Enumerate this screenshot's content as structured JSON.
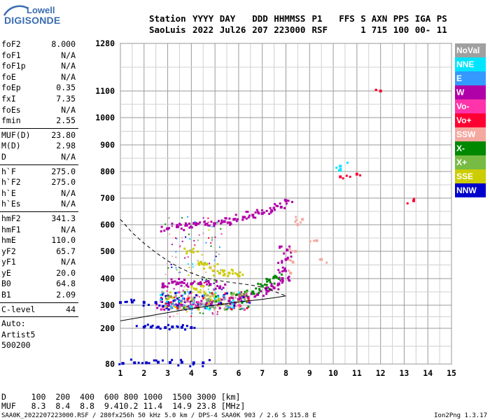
{
  "logo": {
    "line1": "Lowell",
    "line2": "DIGISONDE"
  },
  "header": {
    "row1": [
      "Station",
      "YYYY",
      "DAY",
      "DDD",
      "HHMMSS",
      "P1",
      "FFS",
      "S",
      "AXN",
      "PPS",
      "IGA",
      "PS"
    ],
    "row2": [
      "SaoLuis",
      "2022",
      "Jul26",
      "207",
      "223000",
      "RSF",
      "",
      "1",
      "715",
      "100",
      "00-",
      "11"
    ]
  },
  "params": {
    "group1": [
      {
        "name": "foF2",
        "value": "8.000"
      },
      {
        "name": "foF1",
        "value": "N/A"
      },
      {
        "name": "foF1p",
        "value": "N/A"
      },
      {
        "name": "foE",
        "value": "N/A"
      },
      {
        "name": "foEp",
        "value": "0.35"
      },
      {
        "name": "fxI",
        "value": "7.35"
      },
      {
        "name": "foEs",
        "value": "N/A"
      },
      {
        "name": "fmin",
        "value": "2.55"
      }
    ],
    "group2": [
      {
        "name": "MUF(D)",
        "value": "23.80"
      },
      {
        "name": "M(D)",
        "value": "2.98"
      },
      {
        "name": "D",
        "value": "N/A"
      }
    ],
    "group3": [
      {
        "name": "h`F",
        "value": "275.0"
      },
      {
        "name": "h`F2",
        "value": "275.0"
      },
      {
        "name": "h`E",
        "value": "N/A"
      },
      {
        "name": "h`Es",
        "value": "N/A"
      }
    ],
    "group4": [
      {
        "name": "hmF2",
        "value": "341.3"
      },
      {
        "name": "hmF1",
        "value": "N/A"
      },
      {
        "name": "hmE",
        "value": "110.0"
      },
      {
        "name": "yF2",
        "value": "65.7"
      },
      {
        "name": "yF1",
        "value": "N/A"
      },
      {
        "name": "yE",
        "value": "20.0"
      },
      {
        "name": "B0",
        "value": "64.8"
      },
      {
        "name": "B1",
        "value": "2.09"
      }
    ],
    "group5": [
      {
        "name": "C-level",
        "value": "44"
      }
    ],
    "auto_label": "Auto:",
    "artist": "Artist5",
    "artist_version": "500200"
  },
  "legend": [
    {
      "label": "NoVal",
      "color": "#a0a0a0"
    },
    {
      "label": "NNE",
      "color": "#00e5ff"
    },
    {
      "label": "E",
      "color": "#3399ff"
    },
    {
      "label": "W",
      "color": "#b000a8"
    },
    {
      "label": "Vo-",
      "color": "#ff33aa"
    },
    {
      "label": "Vo+",
      "color": "#ff0033"
    },
    {
      "label": "SSW",
      "color": "#f4a8a0"
    },
    {
      "label": "X-",
      "color": "#008800"
    },
    {
      "label": "X+",
      "color": "#77bb44"
    },
    {
      "label": "SSE",
      "color": "#cccc00"
    },
    {
      "label": "NNW",
      "color": "#0000cc"
    }
  ],
  "footer": {
    "d_label": "D",
    "d_values": [
      "100",
      "200",
      "400",
      "600",
      "800",
      "1000",
      "1500",
      "3000",
      "[km]"
    ],
    "muf_label": "MUF",
    "muf_values": [
      "8.3",
      "8.4",
      "8.8",
      "9.4",
      "10.2",
      "11.4",
      "14.9",
      "23.8",
      "[MHz]"
    ],
    "file_info": "SAA0K_2022207223000.RSF / 280fx256h 50 kHz 5.0 km / DPS-4 SAA0K 903 / 2.6 S 315.8 E",
    "version": "Ion2Png 1.3.17"
  },
  "chart_data": {
    "type": "scatter",
    "x_ticks": [
      1,
      2,
      3,
      4,
      5,
      6,
      7,
      8,
      9,
      10,
      11,
      12,
      13,
      14,
      15
    ],
    "y_ticks": [
      80,
      200,
      300,
      400,
      500,
      600,
      700,
      800,
      900,
      1000,
      1100,
      1280
    ],
    "xlim": [
      1,
      15
    ],
    "ylim": [
      80,
      1280
    ],
    "y_scale": "nonlinear",
    "grid": true,
    "ionogram_colors": {
      "o_trace": "#c000b0",
      "x_trace": "#008800",
      "ssw_trace": "#f4a8a0",
      "oblique": "#cccc00",
      "low_band": "#0000cc"
    },
    "clusters": [
      {
        "mode": "W",
        "points": [
          [
            3.0,
            585
          ],
          [
            3.4,
            592
          ],
          [
            3.8,
            598
          ],
          [
            4.2,
            600
          ],
          [
            4.6,
            601
          ],
          [
            5.0,
            604
          ],
          [
            5.4,
            612
          ],
          [
            5.8,
            620
          ],
          [
            6.2,
            628
          ],
          [
            6.6,
            636
          ],
          [
            7.0,
            642
          ],
          [
            7.4,
            652
          ],
          [
            7.8,
            666
          ],
          [
            8.0,
            690
          ]
        ]
      },
      {
        "mode": "W",
        "points": [
          [
            2.8,
            380
          ],
          [
            3.2,
            386
          ],
          [
            3.6,
            386
          ],
          [
            4.0,
            380
          ],
          [
            4.4,
            380
          ],
          [
            4.8,
            378
          ],
          [
            5.2,
            365
          ]
        ]
      },
      {
        "mode": "W",
        "points": [
          [
            2.8,
            295
          ],
          [
            3.2,
            300
          ],
          [
            3.6,
            300
          ],
          [
            4.0,
            302
          ],
          [
            4.4,
            304
          ],
          [
            4.8,
            306
          ],
          [
            5.2,
            310
          ],
          [
            5.6,
            316
          ],
          [
            6.0,
            322
          ],
          [
            6.4,
            330
          ],
          [
            6.8,
            340
          ],
          [
            7.2,
            352
          ],
          [
            7.5,
            365
          ],
          [
            7.7,
            380
          ],
          [
            7.85,
            400
          ],
          [
            7.95,
            430
          ],
          [
            8.0,
            470
          ],
          [
            8.05,
            505
          ]
        ]
      },
      {
        "mode": "X-",
        "points": [
          [
            6.2,
            340
          ],
          [
            6.6,
            350
          ],
          [
            7.0,
            372
          ],
          [
            7.3,
            394
          ],
          [
            7.5,
            405
          ]
        ]
      },
      {
        "mode": "SSW",
        "points": [
          [
            8.2,
            420
          ],
          [
            8.3,
            460
          ],
          [
            8.4,
            500
          ],
          [
            8.5,
            600
          ],
          [
            8.7,
            620
          ],
          [
            9.3,
            540
          ],
          [
            9.5,
            470
          ]
        ]
      },
      {
        "mode": "SSE",
        "points": [
          [
            4.0,
            500
          ],
          [
            4.4,
            460
          ],
          [
            4.8,
            440
          ],
          [
            5.2,
            420
          ],
          [
            5.6,
            420
          ],
          [
            6.0,
            410
          ],
          [
            4.2,
            360
          ],
          [
            4.6,
            340
          ],
          [
            5.0,
            330
          ]
        ]
      },
      {
        "mode": "NNW",
        "points": [
          [
            2.0,
            205
          ],
          [
            2.3,
            205
          ],
          [
            2.6,
            205
          ],
          [
            2.9,
            203
          ],
          [
            3.2,
            206
          ],
          [
            3.6,
            204
          ],
          [
            4.0,
            203
          ]
        ]
      },
      {
        "mode": "NNW",
        "points": [
          [
            1.0,
            310
          ],
          [
            1.5,
            312
          ],
          [
            2.0,
            310
          ],
          [
            2.5,
            310
          ],
          [
            3.0,
            310
          ],
          [
            3.5,
            312
          ],
          [
            4.0,
            310
          ]
        ]
      },
      {
        "mode": "NNW",
        "points": [
          [
            1.1,
            82
          ],
          [
            1.6,
            84
          ],
          [
            2.1,
            84
          ],
          [
            2.6,
            86
          ],
          [
            3.1,
            85
          ],
          [
            3.6,
            86
          ],
          [
            4.1,
            84
          ],
          [
            4.5,
            84
          ]
        ]
      },
      {
        "mode": "Vo+",
        "points": [
          [
            11.0,
            790
          ],
          [
            10.3,
            780
          ],
          [
            13.4,
            690
          ],
          [
            12.0,
            1100
          ]
        ]
      },
      {
        "mode": "NNE",
        "points": [
          [
            10.3,
            820
          ],
          [
            10.3,
            805
          ]
        ]
      }
    ],
    "model_curves": [
      {
        "name": "",
        "style": "dashed",
        "points": [
          [
            1.0,
            620
          ],
          [
            1.5,
            570
          ],
          [
            2.0,
            530
          ],
          [
            2.5,
            495
          ],
          [
            3.0,
            465
          ],
          [
            3.5,
            440
          ],
          [
            4.0,
            420
          ],
          [
            4.5,
            405
          ],
          [
            5.0,
            395
          ],
          [
            5.5,
            388
          ],
          [
            6.0,
            382
          ],
          [
            6.5,
            376
          ],
          [
            7.0,
            368
          ],
          [
            7.5,
            352
          ],
          [
            8.0,
            335
          ]
        ]
      },
      {
        "name": "",
        "style": "solid",
        "points": [
          [
            1.0,
            232
          ],
          [
            2.0,
            250
          ],
          [
            3.0,
            268
          ],
          [
            4.0,
            285
          ],
          [
            5.0,
            300
          ],
          [
            6.0,
            312
          ],
          [
            7.0,
            322
          ],
          [
            7.5,
            328
          ],
          [
            8.0,
            335
          ],
          [
            7.5,
            328
          ]
        ]
      }
    ]
  }
}
